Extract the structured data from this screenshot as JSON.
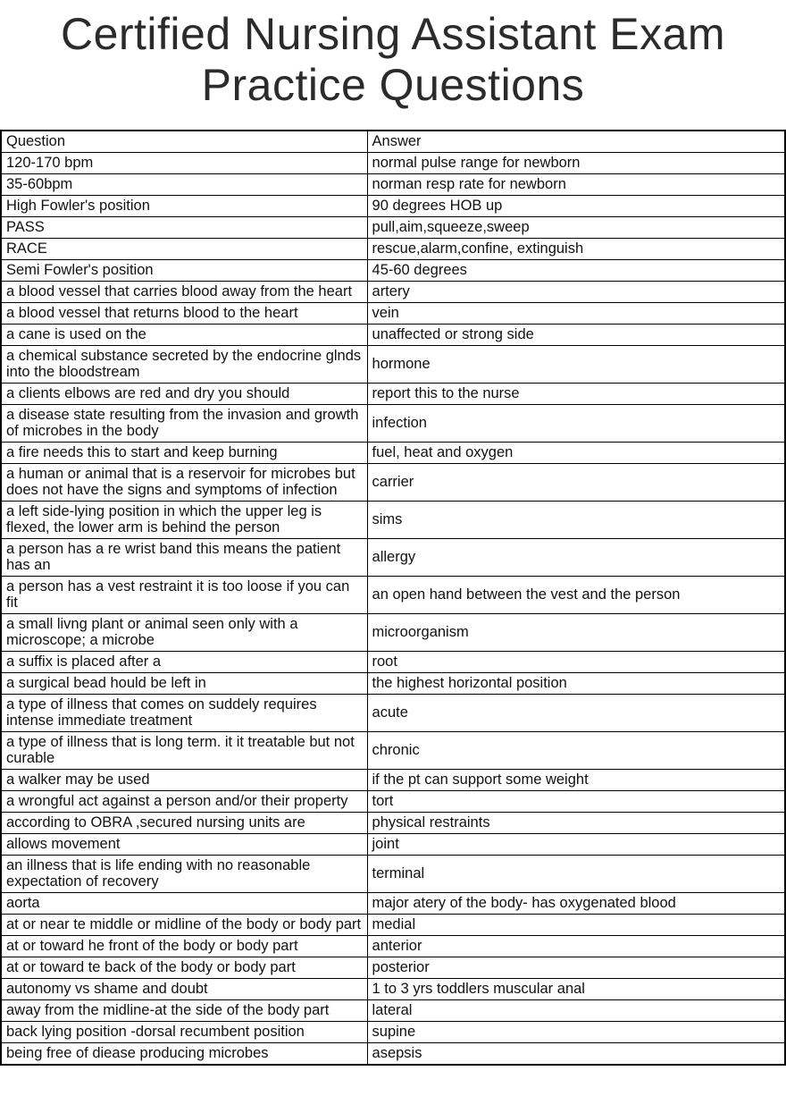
{
  "page": {
    "title": "Certified Nursing Assistant Exam Practice Questions"
  },
  "table": {
    "headers": [
      "Question",
      "Answer"
    ],
    "rows": [
      {
        "q": "120-170 bpm",
        "a": "normal pulse range for newborn"
      },
      {
        "q": "35-60bpm",
        "a": "norman resp rate for newborn"
      },
      {
        "q": "High Fowler's position",
        "a": "90 degrees HOB up"
      },
      {
        "q": "PASS",
        "a": "pull,aim,squeeze,sweep"
      },
      {
        "q": "RACE",
        "a": "rescue,alarm,confine, extinguish"
      },
      {
        "q": "Semi Fowler's position",
        "a": "45-60 degrees"
      },
      {
        "q": "a blood vessel that carries blood away from the heart",
        "a": "artery"
      },
      {
        "q": "a blood vessel that returns blood to the heart",
        "a": "vein"
      },
      {
        "q": "a cane is used on the",
        "a": "unaffected or strong side"
      },
      {
        "q": "a chemical substance secreted by the endocrine glnds into the bloodstream",
        "a": "hormone"
      },
      {
        "q": "a clients elbows are red and dry you should",
        "a": "report this to the nurse"
      },
      {
        "q": "a disease state resulting from the invasion and growth of microbes in the body",
        "a": "infection"
      },
      {
        "q": "a fire needs this to start and keep burning",
        "a": "fuel, heat and oxygen"
      },
      {
        "q": "a human or animal that is a reservoir for microbes but does not have the signs and symptoms of infection",
        "a": "carrier"
      },
      {
        "q": "a left side-lying position in which the upper leg is flexed, the lower arm is behind the person",
        "a": "sims"
      },
      {
        "q": "a person has a re wrist band this means the patient has an",
        "a": "allergy"
      },
      {
        "q": "a person has a vest restraint it is too loose if you can fit",
        "a": "an open hand between the vest and the person"
      },
      {
        "q": "a small livng plant or animal seen only with a microscope; a microbe",
        "a": "microorganism"
      },
      {
        "q": "a suffix is placed after a",
        "a": "root"
      },
      {
        "q": "a surgical bead hould be left in",
        "a": "the highest horizontal position"
      },
      {
        "q": "a type of illness that comes on suddely requires intense immediate treatment",
        "a": "acute"
      },
      {
        "q": "a type of illness that is long term. it it treatable but not curable",
        "a": "chronic"
      },
      {
        "q": "a walker may be used",
        "a": "if the pt can support some weight"
      },
      {
        "q": "a wrongful act against a person and/or their property",
        "a": "tort"
      },
      {
        "q": "according to OBRA ,secured nursing units are",
        "a": "physical restraints"
      },
      {
        "q": "allows movement",
        "a": "joint"
      },
      {
        "q": "an illness that is life ending with no reasonable expectation of recovery",
        "a": "terminal"
      },
      {
        "q": "aorta",
        "a": "major atery of the body- has oxygenated blood"
      },
      {
        "q": "at or near te middle or midline of the body or body part",
        "a": "medial"
      },
      {
        "q": "at or toward he front of the body or body part",
        "a": "anterior"
      },
      {
        "q": "at or toward te back of the body or body part",
        "a": "posterior"
      },
      {
        "q": "autonomy vs shame and doubt",
        "a": "1 to 3 yrs toddlers muscular anal"
      },
      {
        "q": "away from the midline-at the side of the body part",
        "a": "lateral"
      },
      {
        "q": "back lying position -dorsal recumbent position",
        "a": "supine"
      },
      {
        "q": "being free of diease producing microbes",
        "a": "asepsis"
      }
    ]
  }
}
